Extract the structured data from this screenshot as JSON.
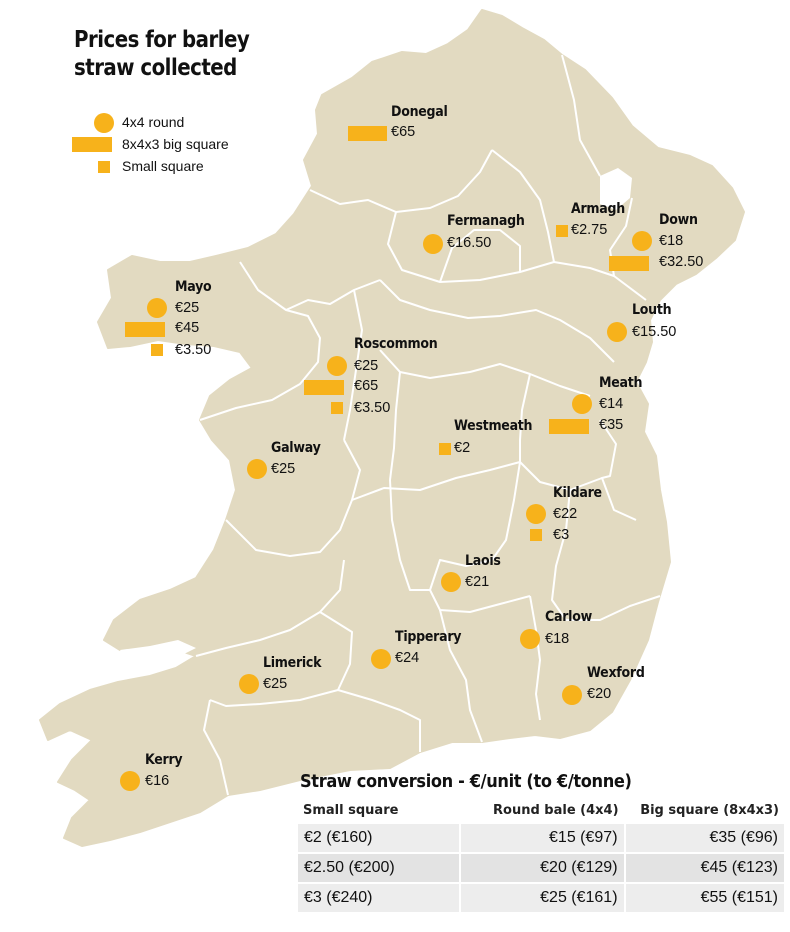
{
  "title": {
    "line1": "Prices for barley",
    "line2": "straw collected"
  },
  "colors": {
    "symbol": "#f7b21b",
    "land": "#e2dac1",
    "border": "#ffffff"
  },
  "legend": [
    {
      "symbol": "round",
      "label": "4x4 round"
    },
    {
      "symbol": "big-square",
      "label": "8x4x3 big square"
    },
    {
      "symbol": "small-square",
      "label": "Small square"
    }
  ],
  "regions": {
    "donegal": {
      "name": "Donegal",
      "big_square": "€65"
    },
    "fermanagh": {
      "name": "Fermanagh",
      "round": "€16.50"
    },
    "armagh": {
      "name": "Armagh",
      "small_square": "€2.75"
    },
    "down": {
      "name": "Down",
      "round": "€18",
      "big_square": "€32.50"
    },
    "mayo": {
      "name": "Mayo",
      "round": "€25",
      "big_square": "€45",
      "small_square": "€3.50"
    },
    "roscommon": {
      "name": "Roscommon",
      "round": "€25",
      "big_square": "€65",
      "small_square": "€3.50"
    },
    "louth": {
      "name": "Louth",
      "round": "€15.50"
    },
    "meath": {
      "name": "Meath",
      "round": "€14",
      "big_square": "€35"
    },
    "westmeath": {
      "name": "Westmeath",
      "small_square": "€2"
    },
    "galway": {
      "name": "Galway",
      "round": "€25"
    },
    "kildare": {
      "name": "Kildare",
      "round": "€22",
      "small_square": "€3"
    },
    "laois": {
      "name": "Laois",
      "round": "€21"
    },
    "carlow": {
      "name": "Carlow",
      "round": "€18"
    },
    "tipperary": {
      "name": "Tipperary",
      "round": "€24"
    },
    "limerick": {
      "name": "Limerick",
      "round": "€25"
    },
    "wexford": {
      "name": "Wexford",
      "round": "€20"
    },
    "kerry": {
      "name": "Kerry",
      "round": "€16"
    }
  },
  "conversion": {
    "title": "Straw conversion - €/unit (to €/tonne)",
    "headers": [
      "Small square",
      "Round bale (4x4)",
      "Big square (8x4x3)"
    ],
    "rows": [
      [
        "€2 (€160)",
        "€15 (€97)",
        "€35 (€96)"
      ],
      [
        "€2.50 (€200)",
        "€20 (€129)",
        "€45 (€123)"
      ],
      [
        "€3 (€240)",
        "€25 (€161)",
        "€55 (€151)"
      ]
    ]
  }
}
